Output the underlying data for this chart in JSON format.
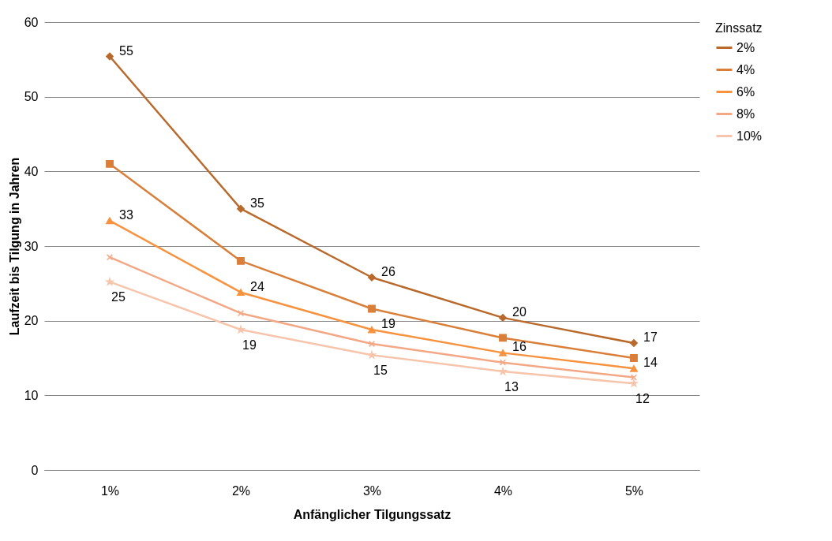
{
  "chart_data": {
    "type": "line",
    "xlabel": "Anfänglicher Tilgungssatz",
    "ylabel": "Laufzeit bis Tilgung in Jahren",
    "legend_title": "Zinssatz",
    "categories": [
      "1%",
      "2%",
      "3%",
      "4%",
      "5%"
    ],
    "series": [
      {
        "name": "2%",
        "color": "#b9692b",
        "marker": "diamond",
        "values": [
          55.4,
          35,
          25.8,
          20.4,
          17
        ],
        "value_labels": [
          "55",
          "35",
          "26",
          "20",
          "17"
        ]
      },
      {
        "name": "4%",
        "color": "#d97f3a",
        "marker": "square",
        "values": [
          41,
          28,
          21.6,
          17.7,
          15
        ]
      },
      {
        "name": "6%",
        "color": "#f7923f",
        "marker": "triangle",
        "values": [
          33.4,
          23.8,
          18.8,
          15.7,
          13.6
        ],
        "value_labels": [
          "33",
          "24",
          "19",
          "16",
          "14"
        ]
      },
      {
        "name": "8%",
        "color": "#f3a784",
        "marker": "cross",
        "values": [
          28.5,
          21,
          16.9,
          14.4,
          12.4
        ]
      },
      {
        "name": "10%",
        "color": "#f6c5ac",
        "marker": "star",
        "values": [
          25.2,
          18.8,
          15.4,
          13.2,
          11.6
        ],
        "value_labels": [
          "25",
          "19",
          "15",
          "13",
          "12"
        ]
      }
    ],
    "ylim": [
      0,
      60
    ],
    "yticks": [
      0,
      10,
      20,
      30,
      40,
      50,
      60
    ],
    "grid": "y",
    "legend": "right",
    "line_style": "solid"
  }
}
